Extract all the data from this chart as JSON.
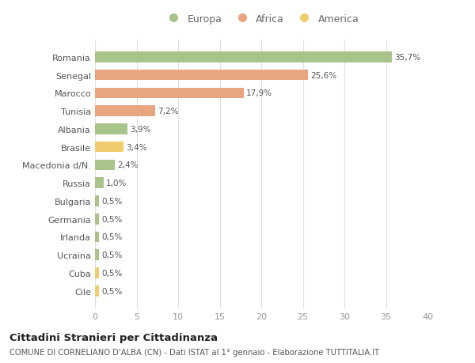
{
  "countries": [
    "Romania",
    "Senegal",
    "Marocco",
    "Tunisia",
    "Albania",
    "Brasile",
    "Macedonia d/N.",
    "Russia",
    "Bulgaria",
    "Germania",
    "Irlanda",
    "Ucraina",
    "Cuba",
    "Cile"
  ],
  "values": [
    35.7,
    25.6,
    17.9,
    7.2,
    3.9,
    3.4,
    2.4,
    1.0,
    0.5,
    0.5,
    0.5,
    0.5,
    0.5,
    0.5
  ],
  "labels": [
    "35,7%",
    "25,6%",
    "17,9%",
    "7,2%",
    "3,9%",
    "3,4%",
    "2,4%",
    "1,0%",
    "0,5%",
    "0,5%",
    "0,5%",
    "0,5%",
    "0,5%",
    "0,5%"
  ],
  "categories": [
    "Europa",
    "Africa",
    "America"
  ],
  "continent": [
    "Europa",
    "Africa",
    "Africa",
    "Africa",
    "Europa",
    "America",
    "Europa",
    "Europa",
    "Europa",
    "Europa",
    "Europa",
    "Europa",
    "America",
    "America"
  ],
  "colors": {
    "Europa": "#a8c48a",
    "Africa": "#e8a580",
    "America": "#f0cc6e"
  },
  "bg_color": "#ffffff",
  "grid_color": "#e0e0e0",
  "title": "Cittadini Stranieri per Cittadinanza",
  "subtitle": "COMUNE DI CORNELIANO D'ALBA (CN) - Dati ISTAT al 1° gennaio - Elaborazione TUTTITALIA.IT",
  "xlim": [
    0,
    40
  ],
  "xticks": [
    0,
    5,
    10,
    15,
    20,
    25,
    30,
    35,
    40
  ]
}
